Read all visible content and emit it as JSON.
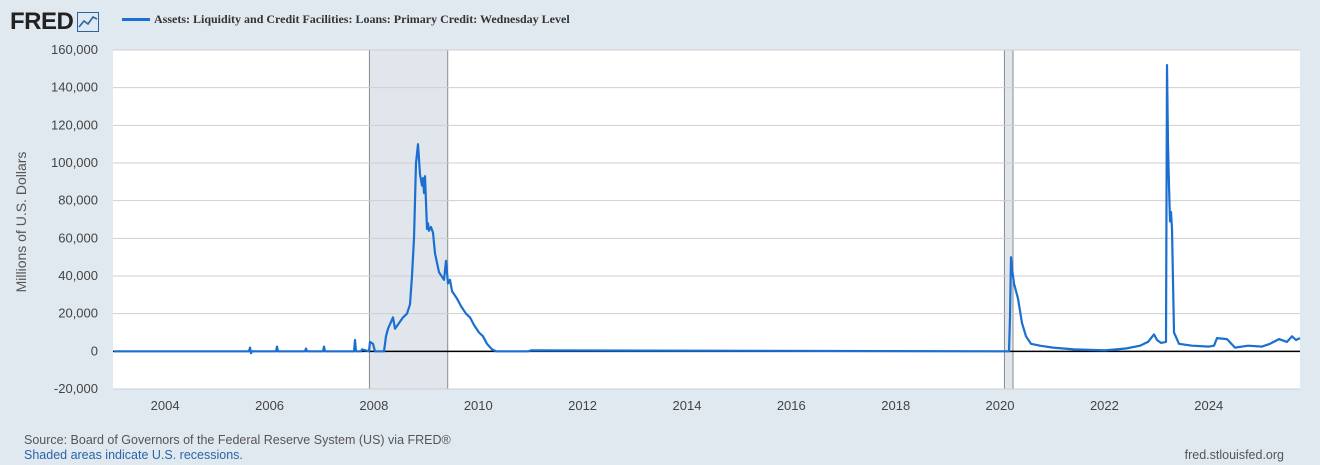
{
  "header": {
    "logo_text": "FRED",
    "logo_icon": "chart-line-icon"
  },
  "colors": {
    "line": "#1b6fd1",
    "recession": "#e1e6ec",
    "background": "#e1e9f0"
  },
  "footer": {
    "source": "Source: Board of Governors of the Federal Reserve System (US) via FRED®",
    "note": "Shaded areas indicate U.S. recessions.",
    "url": "fred.stlouisfed.org"
  },
  "chart_data": {
    "type": "line",
    "ylabel": "Millions of U.S. Dollars",
    "ylim": [
      -20000,
      160000
    ],
    "yticks": [
      -20000,
      0,
      20000,
      40000,
      60000,
      80000,
      100000,
      120000,
      140000,
      160000
    ],
    "ytick_labels": [
      "-20,000",
      "0",
      "20,000",
      "40,000",
      "60,000",
      "80,000",
      "100,000",
      "120,000",
      "140,000",
      "160,000"
    ],
    "xlim": [
      "2003-01-01",
      "2025-10-01"
    ],
    "xticks": [
      "2004",
      "2006",
      "2008",
      "2010",
      "2012",
      "2014",
      "2016",
      "2018",
      "2020",
      "2022",
      "2024"
    ],
    "grid": true,
    "recessions": [
      {
        "start": "2007-12-01",
        "end": "2009-06-01"
      },
      {
        "start": "2020-02-01",
        "end": "2020-04-01"
      }
    ],
    "series": [
      {
        "name": "Assets: Liquidity and Credit Facilities: Loans: Primary Credit: Wednesday Level",
        "points": [
          [
            "2003-01-08",
            0
          ],
          [
            "2005-08-10",
            0
          ],
          [
            "2005-08-17",
            2000
          ],
          [
            "2005-08-24",
            -1000
          ],
          [
            "2005-08-31",
            0
          ],
          [
            "2006-02-15",
            0
          ],
          [
            "2006-02-22",
            2500
          ],
          [
            "2006-03-01",
            0
          ],
          [
            "2006-09-06",
            0
          ],
          [
            "2006-09-13",
            1500
          ],
          [
            "2006-09-20",
            0
          ],
          [
            "2007-01-10",
            0
          ],
          [
            "2007-01-17",
            2500
          ],
          [
            "2007-01-24",
            0
          ],
          [
            "2007-08-15",
            0
          ],
          [
            "2007-08-22",
            6000
          ],
          [
            "2007-08-29",
            0
          ],
          [
            "2007-10-03",
            0
          ],
          [
            "2007-10-10",
            1000
          ],
          [
            "2007-11-28",
            0
          ],
          [
            "2007-12-05",
            5000
          ],
          [
            "2007-12-26",
            4000
          ],
          [
            "2008-01-09",
            0
          ],
          [
            "2008-03-12",
            0
          ],
          [
            "2008-03-26",
            8000
          ],
          [
            "2008-04-09",
            12000
          ],
          [
            "2008-05-14",
            18000
          ],
          [
            "2008-05-28",
            12000
          ],
          [
            "2008-06-25",
            15000
          ],
          [
            "2008-07-23",
            18000
          ],
          [
            "2008-08-20",
            20000
          ],
          [
            "2008-09-10",
            25000
          ],
          [
            "2008-09-24",
            40000
          ],
          [
            "2008-10-08",
            60000
          ],
          [
            "2008-10-22",
            100000
          ],
          [
            "2008-11-05",
            110000
          ],
          [
            "2008-11-19",
            94000
          ],
          [
            "2008-12-03",
            88000
          ],
          [
            "2008-12-10",
            92000
          ],
          [
            "2008-12-17",
            84000
          ],
          [
            "2008-12-24",
            93000
          ],
          [
            "2009-01-07",
            65000
          ],
          [
            "2009-01-14",
            68000
          ],
          [
            "2009-01-21",
            64000
          ],
          [
            "2009-02-04",
            66000
          ],
          [
            "2009-02-18",
            63000
          ],
          [
            "2009-03-04",
            52000
          ],
          [
            "2009-04-01",
            42000
          ],
          [
            "2009-05-06",
            38000
          ],
          [
            "2009-05-20",
            48000
          ],
          [
            "2009-06-03",
            36000
          ],
          [
            "2009-06-17",
            38000
          ],
          [
            "2009-07-01",
            32000
          ],
          [
            "2009-08-05",
            28000
          ],
          [
            "2009-09-02",
            24000
          ],
          [
            "2009-10-07",
            20000
          ],
          [
            "2009-11-04",
            18000
          ],
          [
            "2009-12-02",
            14000
          ],
          [
            "2010-01-06",
            10000
          ],
          [
            "2010-02-03",
            8000
          ],
          [
            "2010-03-03",
            4000
          ],
          [
            "2010-04-07",
            1000
          ],
          [
            "2010-05-05",
            0
          ],
          [
            "2010-12-15",
            0
          ],
          [
            "2011-01-05",
            500
          ],
          [
            "2020-03-04",
            0
          ],
          [
            "2020-03-11",
            18000
          ],
          [
            "2020-03-18",
            50000
          ],
          [
            "2020-03-25",
            44000
          ],
          [
            "2020-04-08",
            36000
          ],
          [
            "2020-05-06",
            28000
          ],
          [
            "2020-06-03",
            15000
          ],
          [
            "2020-07-01",
            8000
          ],
          [
            "2020-08-05",
            4000
          ],
          [
            "2020-10-07",
            3000
          ],
          [
            "2021-01-06",
            2000
          ],
          [
            "2021-06-02",
            1000
          ],
          [
            "2022-01-05",
            500
          ],
          [
            "2022-06-01",
            1500
          ],
          [
            "2022-09-07",
            3000
          ],
          [
            "2022-11-02",
            5000
          ],
          [
            "2022-12-14",
            9000
          ],
          [
            "2023-01-04",
            6000
          ],
          [
            "2023-02-01",
            4500
          ],
          [
            "2023-03-08",
            5000
          ],
          [
            "2023-03-15",
            152000
          ],
          [
            "2023-03-22",
            110000
          ],
          [
            "2023-03-29",
            88000
          ],
          [
            "2023-04-05",
            69000
          ],
          [
            "2023-04-12",
            74000
          ],
          [
            "2023-04-19",
            65000
          ],
          [
            "2023-05-03",
            10000
          ],
          [
            "2023-06-07",
            4000
          ],
          [
            "2023-09-06",
            3000
          ],
          [
            "2024-01-03",
            2500
          ],
          [
            "2024-02-07",
            3000
          ],
          [
            "2024-02-28",
            7000
          ],
          [
            "2024-05-08",
            6500
          ],
          [
            "2024-07-03",
            2000
          ],
          [
            "2024-10-02",
            3000
          ],
          [
            "2025-01-08",
            2500
          ],
          [
            "2025-03-05",
            4000
          ],
          [
            "2025-05-07",
            6500
          ],
          [
            "2025-07-02",
            5000
          ],
          [
            "2025-08-06",
            8000
          ],
          [
            "2025-09-03",
            6000
          ],
          [
            "2025-10-01",
            7000
          ]
        ]
      }
    ]
  }
}
